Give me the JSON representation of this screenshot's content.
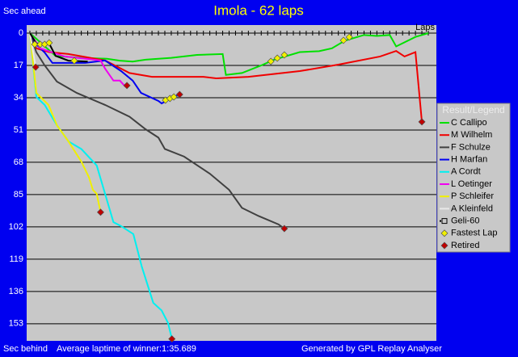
{
  "chart_data": {
    "type": "line",
    "title": "Imola - 62 laps",
    "y_label_top": "Sec ahead",
    "y_label_bottom": "Sec behind",
    "x_label": "Laps",
    "footer_left": "Average laptime of winner:1:35.689",
    "footer_right": "Generated by GPL Replay Analyser",
    "legend_title": "Result/Legend",
    "legend_position": "right",
    "grid": true,
    "xlim": [
      0,
      62
    ],
    "xticks": [
      0,
      1,
      2,
      3,
      4,
      5,
      6,
      7,
      8,
      9,
      10,
      11,
      12,
      13,
      14,
      15,
      16,
      17,
      18,
      19,
      20,
      21,
      22,
      23,
      24,
      25,
      26,
      27,
      28,
      29,
      30,
      31,
      32,
      33,
      34,
      35,
      36,
      37,
      38,
      39,
      40,
      41,
      42,
      43,
      44,
      45,
      46,
      47,
      48,
      49,
      50,
      51,
      52,
      53,
      54,
      55,
      56,
      57,
      58,
      59,
      60,
      61,
      62
    ],
    "ylim": [
      162,
      0
    ],
    "yticks": [
      0,
      17,
      34,
      51,
      68,
      85,
      102,
      119,
      136,
      153
    ],
    "series": [
      {
        "name": "C Callipo",
        "color": "#00e000",
        "x": [
          0,
          2,
          4,
          8,
          12,
          14,
          16,
          18,
          22,
          26,
          30,
          30.5,
          33,
          36,
          38,
          42,
          45,
          47,
          49,
          52,
          54,
          56,
          57,
          60,
          62
        ],
        "values": [
          0,
          6,
          12,
          13,
          13.5,
          14.5,
          15,
          14,
          13,
          11.5,
          11,
          22,
          21,
          17,
          14,
          10,
          9.5,
          8,
          4,
          1,
          1.5,
          1,
          7,
          2,
          0
        ]
      },
      {
        "name": "M Wilhelm",
        "color": "#f00000",
        "x": [
          0,
          1,
          3,
          6,
          11.7,
          15.5,
          19,
          27,
          29,
          34,
          42,
          48,
          54.5,
          57,
          58.3,
          60,
          61
        ],
        "values": [
          0,
          8,
          10,
          11,
          14.4,
          21,
          23,
          23,
          23.8,
          23,
          20,
          16.6,
          12.3,
          9.4,
          12.3,
          10,
          46.7
        ]
      },
      {
        "name": "F Schulze",
        "color": "#404040",
        "x": [
          0,
          1,
          2.3,
          4.2,
          7.3,
          11.7,
          15.5,
          18,
          20,
          21,
          24,
          28,
          31,
          33,
          35.6,
          38.7,
          39.6
        ],
        "values": [
          0,
          10,
          17,
          25.5,
          31.5,
          37.8,
          44,
          50.6,
          55,
          61,
          65,
          74,
          82.5,
          92,
          96.3,
          100.7,
          102.9
        ]
      },
      {
        "name": "H Marfan",
        "color": "#0000f0",
        "x": [
          0,
          1,
          2.3,
          3.5,
          8.6,
          11.7,
          14.2,
          16,
          17.3,
          20,
          20.5,
          22.4,
          23.3
        ],
        "values": [
          0,
          6,
          10.2,
          15.7,
          15.7,
          14.4,
          20,
          25,
          31.5,
          35.7,
          37,
          33.6,
          32.3
        ]
      },
      {
        "name": "A Cordt",
        "color": "#00f0f0",
        "x": [
          0,
          1,
          2.3,
          4.2,
          6,
          8,
          10.4,
          11.7,
          13,
          14.2,
          16.1,
          17.4,
          19.2,
          20.5,
          21.5,
          22.1
        ],
        "values": [
          0,
          33.6,
          37.8,
          48.5,
          57,
          61,
          69.7,
          84.6,
          99.5,
          101.6,
          105.8,
          122.8,
          142,
          146,
          152.6,
          161
        ]
      },
      {
        "name": "L Oetinger",
        "color": "#f000f0",
        "x": [
          0,
          1.6,
          5.4,
          11,
          11.7,
          13,
          14,
          14.8,
          15.1
        ],
        "values": [
          0,
          8,
          12.3,
          14.4,
          18.7,
          25,
          25,
          28,
          27.6
        ]
      },
      {
        "name": "P Schleifer",
        "color": "#f0f000",
        "x": [
          0,
          1,
          2.9,
          4.2,
          6,
          8,
          9.2,
          9.8,
          10.4,
          11
        ],
        "values": [
          0,
          31.5,
          37.8,
          48.5,
          57,
          67.6,
          76,
          82.5,
          84.6,
          94.3
        ]
      },
      {
        "name": "A Kleinfeld",
        "color": "#e8e8e8",
        "x": [
          0,
          0.9
        ],
        "values": [
          0,
          17.9
        ]
      },
      {
        "name": "Geli-60",
        "color": "#000000",
        "marker": "square",
        "x": [
          0,
          1,
          2,
          3,
          4,
          6,
          9
        ],
        "values": [
          0,
          5.5,
          5.5,
          5.5,
          12,
          14.5,
          15
        ]
      },
      {
        "name": "Fastest Lap",
        "color": "#f0f000",
        "marker": "diamond",
        "line": false,
        "x": [
          0.75,
          1.6,
          2.3,
          3,
          6.9,
          21.1,
          21.8,
          22.4,
          37.5,
          38.5,
          39.6,
          48.8,
          49.7
        ],
        "values": [
          5.9,
          5.9,
          5.9,
          5.1,
          14.5,
          35.3,
          34.4,
          33.6,
          14.9,
          13.2,
          11.5,
          3.8,
          2.1
        ]
      },
      {
        "name": "Retired",
        "color": "#c00000",
        "marker": "diamond",
        "line": false,
        "x": [
          0.9,
          11,
          15.1,
          22.1,
          23.3,
          39.6,
          61
        ],
        "values": [
          17.9,
          94.3,
          27.6,
          161,
          32.3,
          102.9,
          46.7
        ]
      }
    ]
  }
}
